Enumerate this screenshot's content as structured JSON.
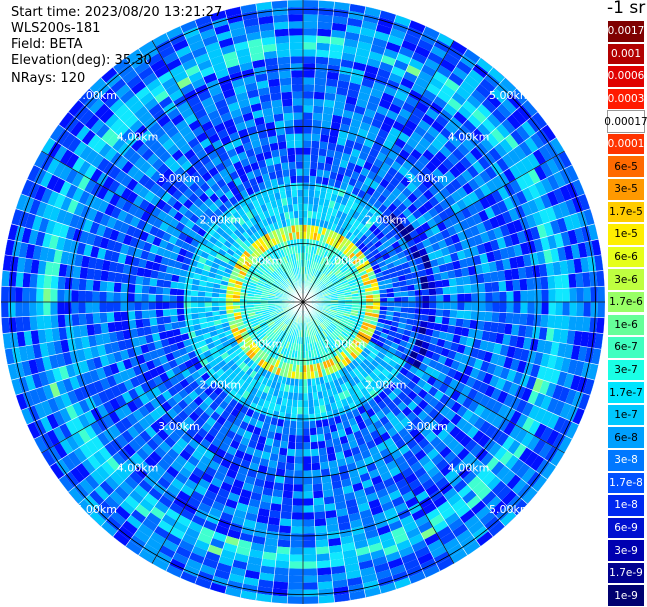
{
  "info": {
    "start_time": "Start time: 2023/08/20 13:21:27",
    "system": "WLS200s-181",
    "field": "Field: BETA",
    "elevation": "Elevation(deg): 35.30",
    "nrays": "NRays: 120"
  },
  "chart_data": {
    "type": "heatmap",
    "projection": "polar (PPI scan)",
    "rays": 120,
    "range_rings_km": [
      1,
      2,
      3,
      4,
      5
    ],
    "range_labels": [
      "1.00km",
      "2.00km",
      "3.00km",
      "4.00km",
      "5.00km"
    ],
    "colorbar": {
      "units": "-1 sr",
      "labels": [
        "0.0017",
        "0.001",
        "0.0006",
        "0.0003",
        "0.00017",
        "0.0001",
        "6e-5",
        "3e-5",
        "1.7e-5",
        "1e-5",
        "6e-6",
        "3e-6",
        "1.7e-6",
        "1e-6",
        "6e-7",
        "3e-7",
        "1.7e-7",
        "1e-7",
        "6e-8",
        "3e-8",
        "1.7e-8",
        "1e-8",
        "6e-9",
        "3e-9",
        "1.7e-9",
        "1e-9"
      ],
      "colors": [
        "#7f0000",
        "#b20000",
        "#e00000",
        "#ff1a00",
        "#ffffff",
        "#ff3300",
        "#ff6a00",
        "#ff9900",
        "#ffcc00",
        "#ffee00",
        "#e6ff1a",
        "#bfff40",
        "#99ff66",
        "#66ff99",
        "#40ffc0",
        "#1affe6",
        "#00e5ff",
        "#00c8ff",
        "#00a0ff",
        "#0078ff",
        "#0050ff",
        "#0028f0",
        "#0010d0",
        "#0000b0",
        "#000090",
        "#000070"
      ]
    }
  }
}
